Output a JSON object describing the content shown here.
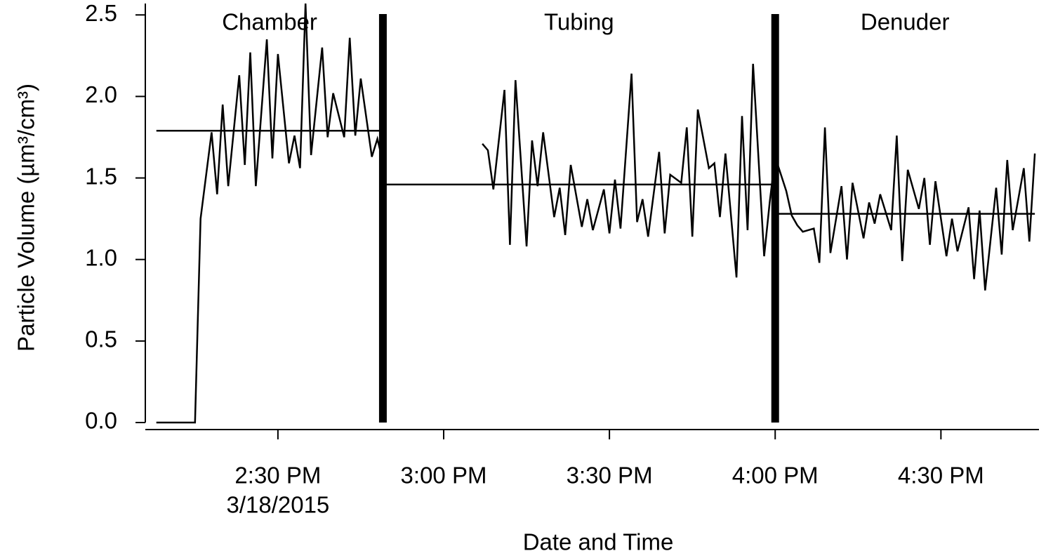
{
  "chart_data": {
    "type": "line",
    "x_label": "Date and Time",
    "y_label": "Particle Volume (µm³/cm³)",
    "x_date_label": "3/18/2015",
    "color": "#000000",
    "xlim": [
      "2015-03-18T14:06",
      "2015-03-18T16:48"
    ],
    "ylim": [
      0,
      2.57
    ],
    "xticks": [
      {
        "value": "2015-03-18T14:30",
        "label": "2:30 PM"
      },
      {
        "value": "2015-03-18T15:00",
        "label": "3:00 PM"
      },
      {
        "value": "2015-03-18T15:30",
        "label": "3:30 PM"
      },
      {
        "value": "2015-03-18T16:00",
        "label": "4:00 PM"
      },
      {
        "value": "2015-03-18T16:30",
        "label": "4:30 PM"
      }
    ],
    "yticks": [
      {
        "value": 0,
        "label": "0.0"
      },
      0.5,
      {
        "value": 1,
        "label": "1.0"
      },
      1.5,
      {
        "value": 2,
        "label": "2.0"
      },
      2.5
    ],
    "regions": [
      {
        "label": "Chamber",
        "start": "2015-03-18T14:08",
        "end": "2015-03-18T14:49",
        "mean": 1.79
      },
      {
        "label": "Tubing",
        "start": "2015-03-18T14:49",
        "end": "2015-03-18T16:00",
        "mean": 1.46
      },
      {
        "label": "Denuder",
        "start": "2015-03-18T16:00",
        "end": "2015-03-18T16:47",
        "mean": 1.28
      }
    ],
    "x": [
      "2015-03-18T14:08",
      "2015-03-18T14:15",
      "2015-03-18T14:16",
      "2015-03-18T14:18",
      "2015-03-18T14:19",
      "2015-03-18T14:20",
      "2015-03-18T14:21",
      "2015-03-18T14:23",
      "2015-03-18T14:24",
      "2015-03-18T14:25",
      "2015-03-18T14:26",
      "2015-03-18T14:28",
      "2015-03-18T14:29",
      "2015-03-18T14:30",
      "2015-03-18T14:32",
      "2015-03-18T14:33",
      "2015-03-18T14:34",
      "2015-03-18T14:35",
      "2015-03-18T14:36",
      "2015-03-18T14:38",
      "2015-03-18T14:39",
      "2015-03-18T14:40",
      "2015-03-18T14:42",
      "2015-03-18T14:43",
      "2015-03-18T14:44",
      "2015-03-18T14:45",
      "2015-03-18T14:47",
      "2015-03-18T14:48",
      "2015-03-18T14:49",
      "2015-03-18T14:58",
      "2015-03-18T15:07",
      "2015-03-18T15:08",
      "2015-03-18T15:09",
      "2015-03-18T15:11",
      "2015-03-18T15:12",
      "2015-03-18T15:13",
      "2015-03-18T15:15",
      "2015-03-18T15:16",
      "2015-03-18T15:17",
      "2015-03-18T15:18",
      "2015-03-18T15:20",
      "2015-03-18T15:21",
      "2015-03-18T15:22",
      "2015-03-18T15:23",
      "2015-03-18T15:25",
      "2015-03-18T15:26",
      "2015-03-18T15:27",
      "2015-03-18T15:29",
      "2015-03-18T15:30",
      "2015-03-18T15:31",
      "2015-03-18T15:32",
      "2015-03-18T15:34",
      "2015-03-18T15:35",
      "2015-03-18T15:36",
      "2015-03-18T15:37",
      "2015-03-18T15:39",
      "2015-03-18T15:40",
      "2015-03-18T15:41",
      "2015-03-18T15:43",
      "2015-03-18T15:44",
      "2015-03-18T15:45",
      "2015-03-18T15:46",
      "2015-03-18T15:48",
      "2015-03-18T15:49",
      "2015-03-18T15:50",
      "2015-03-18T15:51",
      "2015-03-18T15:53",
      "2015-03-18T15:54",
      "2015-03-18T15:55",
      "2015-03-18T15:56",
      "2015-03-18T15:58",
      "2015-03-18T15:59",
      "2015-03-18T16:00",
      "2015-03-18T16:02",
      "2015-03-18T16:03",
      "2015-03-18T16:04",
      "2015-03-18T16:05",
      "2015-03-18T16:07",
      "2015-03-18T16:08",
      "2015-03-18T16:09",
      "2015-03-18T16:10",
      "2015-03-18T16:12",
      "2015-03-18T16:13",
      "2015-03-18T16:14",
      "2015-03-18T16:16",
      "2015-03-18T16:17",
      "2015-03-18T16:18",
      "2015-03-18T16:19",
      "2015-03-18T16:21",
      "2015-03-18T16:22",
      "2015-03-18T16:23",
      "2015-03-18T16:24",
      "2015-03-18T16:26",
      "2015-03-18T16:27",
      "2015-03-18T16:28",
      "2015-03-18T16:29",
      "2015-03-18T16:31",
      "2015-03-18T16:32",
      "2015-03-18T16:33",
      "2015-03-18T16:35",
      "2015-03-18T16:36",
      "2015-03-18T16:37",
      "2015-03-18T16:38",
      "2015-03-18T16:40",
      "2015-03-18T16:41",
      "2015-03-18T16:42",
      "2015-03-18T16:43",
      "2015-03-18T16:45",
      "2015-03-18T16:46",
      "2015-03-18T16:47"
    ],
    "values": [
      0,
      0,
      1.25,
      1.78,
      1.4,
      1.95,
      1.45,
      2.13,
      1.58,
      2.27,
      1.45,
      2.35,
      1.62,
      2.26,
      1.59,
      1.76,
      1.56,
      2.57,
      1.64,
      2.3,
      1.75,
      2.02,
      1.75,
      2.36,
      1.76,
      2.11,
      1.63,
      1.74,
      1.6,
      null,
      1.71,
      1.67,
      1.43,
      2.04,
      1.09,
      2.1,
      1.08,
      1.73,
      1.45,
      1.78,
      1.26,
      1.44,
      1.15,
      1.58,
      1.2,
      1.37,
      1.18,
      1.43,
      1.16,
      1.49,
      1.19,
      2.14,
      1.23,
      1.37,
      1.14,
      1.66,
      1.16,
      1.52,
      1.47,
      1.81,
      1.14,
      1.92,
      1.56,
      1.59,
      1.26,
      1.65,
      0.89,
      1.88,
      1.18,
      2.2,
      1.02,
      1.35,
      1.63,
      1.42,
      1.27,
      1.21,
      1.17,
      1.19,
      0.98,
      1.81,
      1.04,
      1.45,
      1.0,
      1.47,
      1.13,
      1.35,
      1.22,
      1.4,
      1.18,
      1.76,
      0.99,
      1.55,
      1.31,
      1.5,
      1.09,
      1.48,
      1.02,
      1.25,
      1.05,
      1.32,
      0.88,
      1.3,
      0.81,
      1.44,
      1.03,
      1.61,
      1.18,
      1.56,
      1.11,
      1.65
    ]
  }
}
